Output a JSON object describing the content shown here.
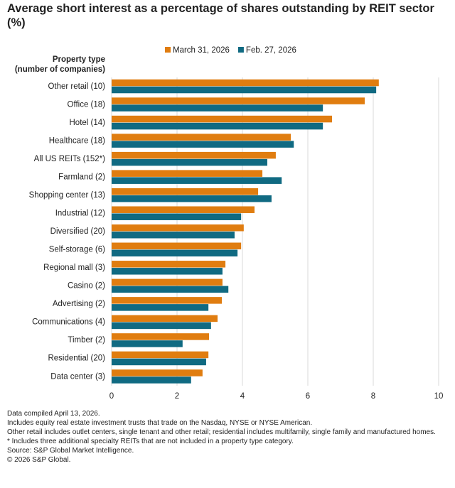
{
  "chart_data": {
    "type": "bar",
    "orientation": "horizontal",
    "title": "Average short interest as a percentage of shares outstanding by REIT sector (%)",
    "y_axis_label": [
      "Property type",
      "(number of companies)"
    ],
    "categories": [
      "Other retail (10)",
      "Office (18)",
      "Hotel (14)",
      "Healthcare (18)",
      "All US REITs (152*)",
      "Farmland (2)",
      "Shopping center (13)",
      "Industrial (12)",
      "Diversified (20)",
      "Self-storage (6)",
      "Regional mall (3)",
      "Casino (2)",
      "Advertising (2)",
      "Communications (4)",
      "Timber (2)",
      "Residential (20)",
      "Data center (3)"
    ],
    "series": [
      {
        "name": "March 31, 2026",
        "color": "#e07d10",
        "values": [
          8.17,
          7.74,
          6.74,
          5.48,
          5.02,
          4.61,
          4.48,
          4.37,
          4.04,
          3.96,
          3.48,
          3.39,
          3.37,
          3.24,
          2.98,
          2.96,
          2.78
        ]
      },
      {
        "name": "Feb. 27, 2026",
        "color": "#106a82",
        "values": [
          8.09,
          6.46,
          6.46,
          5.57,
          4.76,
          5.2,
          4.89,
          3.96,
          3.76,
          3.85,
          3.39,
          3.57,
          2.96,
          3.04,
          2.17,
          2.89,
          2.43
        ]
      }
    ],
    "xlim": [
      0,
      10
    ],
    "xticks": [
      0,
      2,
      4,
      6,
      8,
      10
    ],
    "grid": true,
    "legend": "top",
    "notes": [
      "Data compiled April 13, 2026.",
      "Includes equity real estate investment trusts that trade on the Nasdaq, NYSE or NYSE American.",
      "Other retail includes outlet centers, single tenant and other retail; residential includes multifamily, single family and manufactured homes.",
      "* Includes three additional specialty REITs that are not included in a property type category.",
      "Source: S&P Global Market Intelligence.",
      "© 2026 S&P Global."
    ]
  }
}
